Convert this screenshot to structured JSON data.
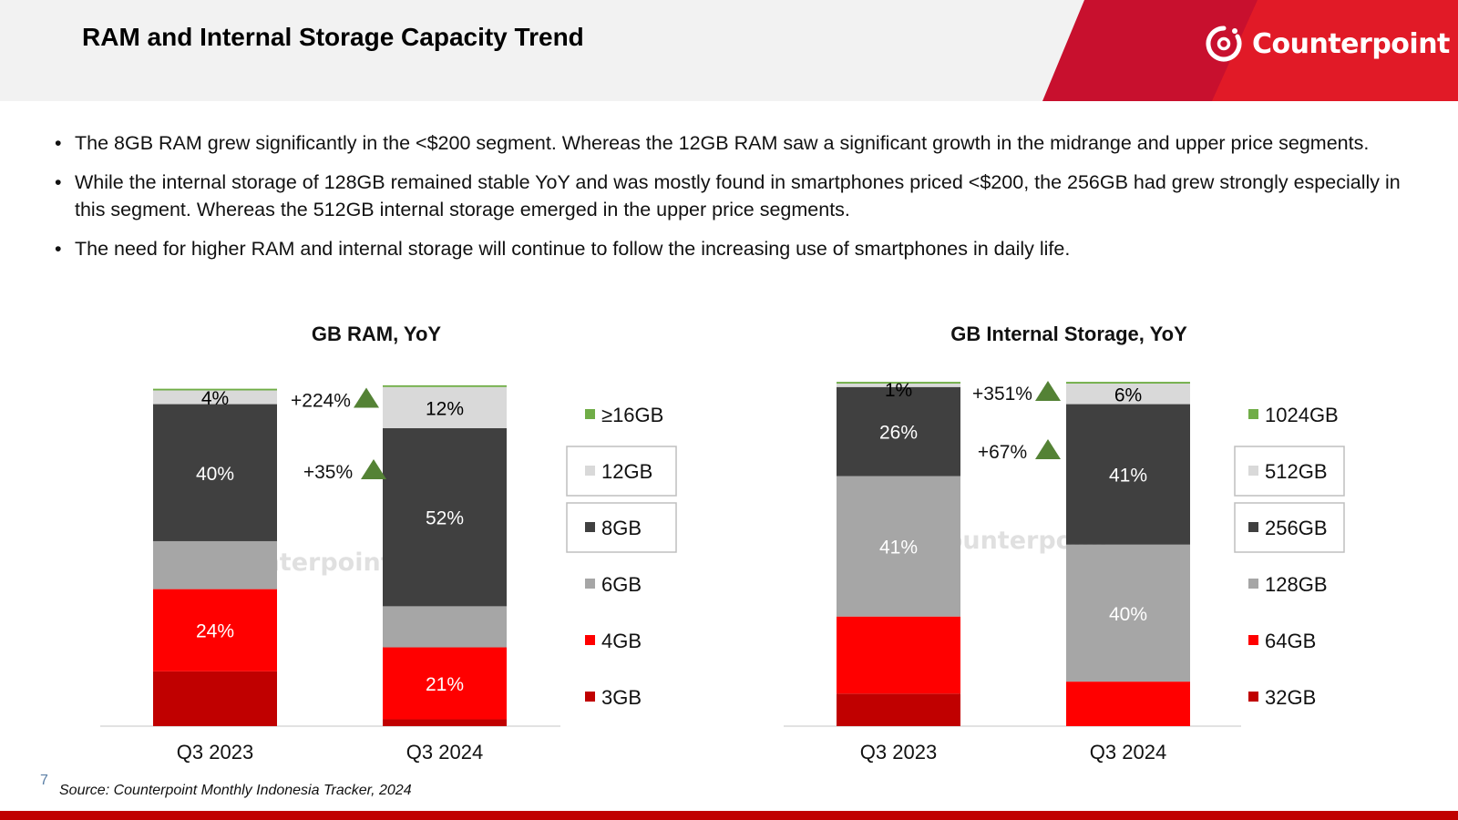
{
  "header": {
    "title": "RAM and Internal Storage Capacity Trend",
    "brand": "Counterpoint",
    "brand_colors": {
      "dark_red": "#c8102e",
      "red": "#e11a27"
    }
  },
  "bullets": [
    "The 8GB RAM grew significantly in the <$200 segment. Whereas the 12GB RAM saw a significant growth in the midrange and upper price segments.",
    "While the internal storage of 128GB remained stable YoY and was mostly found in smartphones priced <$200, the 256GB had grew strongly especially in this segment. Whereas the 512GB internal storage emerged in the upper price segments.",
    "The need for higher RAM and internal storage will continue to follow the increasing use of smartphones in daily life."
  ],
  "chart_data": [
    {
      "type": "bar",
      "stacked": true,
      "title": "GB RAM, YoY",
      "categories": [
        "Q3 2023",
        "Q3 2024"
      ],
      "ylim": [
        0,
        100
      ],
      "series": [
        {
          "name": "3GB",
          "color": "#c00000",
          "values": [
            16,
            2
          ]
        },
        {
          "name": "4GB",
          "color": "#ff0000",
          "values": [
            24,
            21
          ]
        },
        {
          "name": "6GB",
          "color": "#a6a6a6",
          "values": [
            14,
            12
          ]
        },
        {
          "name": "8GB",
          "color": "#404040",
          "values": [
            40,
            52
          ]
        },
        {
          "name": "12GB",
          "color": "#d9d9d9",
          "values": [
            4,
            12
          ]
        },
        {
          "name": "≥16GB",
          "color": "#70ad47",
          "values": [
            0.5,
            0.5
          ]
        }
      ],
      "data_labels": [
        {
          "text": "4%",
          "category": 0,
          "series": "12GB",
          "color": "#000000"
        },
        {
          "text": "40%",
          "category": 0,
          "series": "8GB",
          "color": "#ffffff"
        },
        {
          "text": "24%",
          "category": 0,
          "series": "4GB",
          "color": "#ffffff"
        },
        {
          "text": "12%",
          "category": 1,
          "series": "12GB",
          "color": "#000000"
        },
        {
          "text": "52%",
          "category": 1,
          "series": "8GB",
          "color": "#ffffff"
        },
        {
          "text": "21%",
          "category": 1,
          "series": "4GB",
          "color": "#ffffff"
        }
      ],
      "annotations": [
        {
          "text": "+224%",
          "series": "12GB"
        },
        {
          "text": "+35%",
          "series": "8GB"
        }
      ],
      "legend": [
        "≥16GB",
        "12GB",
        "8GB",
        "6GB",
        "4GB",
        "3GB"
      ],
      "legend_boxed": [
        "12GB",
        "8GB"
      ],
      "watermark": "Counterpoint"
    },
    {
      "type": "bar",
      "stacked": true,
      "title": "GB Internal Storage, YoY",
      "categories": [
        "Q3 2023",
        "Q3 2024"
      ],
      "ylim": [
        0,
        100
      ],
      "series": [
        {
          "name": "32GB",
          "color": "#c00000",
          "values": [
            9.5,
            0
          ]
        },
        {
          "name": "64GB",
          "color": "#ff0000",
          "values": [
            22.5,
            13
          ]
        },
        {
          "name": "128GB",
          "color": "#a6a6a6",
          "values": [
            41,
            40
          ]
        },
        {
          "name": "256GB",
          "color": "#404040",
          "values": [
            26,
            41
          ]
        },
        {
          "name": "512GB",
          "color": "#d9d9d9",
          "values": [
            1,
            6
          ]
        },
        {
          "name": "1024GB",
          "color": "#70ad47",
          "values": [
            0.5,
            0.5
          ]
        }
      ],
      "data_labels": [
        {
          "text": "1%",
          "category": 0,
          "series": "512GB",
          "color": "#000000"
        },
        {
          "text": "26%",
          "category": 0,
          "series": "256GB",
          "color": "#ffffff"
        },
        {
          "text": "41%",
          "category": 0,
          "series": "128GB",
          "color": "#ffffff"
        },
        {
          "text": "6%",
          "category": 1,
          "series": "512GB",
          "color": "#000000"
        },
        {
          "text": "41%",
          "category": 1,
          "series": "256GB",
          "color": "#ffffff"
        },
        {
          "text": "40%",
          "category": 1,
          "series": "128GB",
          "color": "#ffffff"
        }
      ],
      "annotations": [
        {
          "text": "+351%",
          "series": "512GB"
        },
        {
          "text": "+67%",
          "series": "256GB"
        }
      ],
      "legend": [
        "1024GB",
        "512GB",
        "256GB",
        "128GB",
        "64GB",
        "32GB"
      ],
      "legend_boxed": [
        "512GB",
        "256GB"
      ],
      "watermark": "Counterpoint"
    }
  ],
  "footer": {
    "page_number": "7",
    "source": "Source: Counterpoint Monthly Indonesia Tracker, 2024"
  },
  "colors": {
    "annotation_arrow": "#548235",
    "bottom_bar": "#c00000",
    "header_bg": "#f2f2f2"
  }
}
